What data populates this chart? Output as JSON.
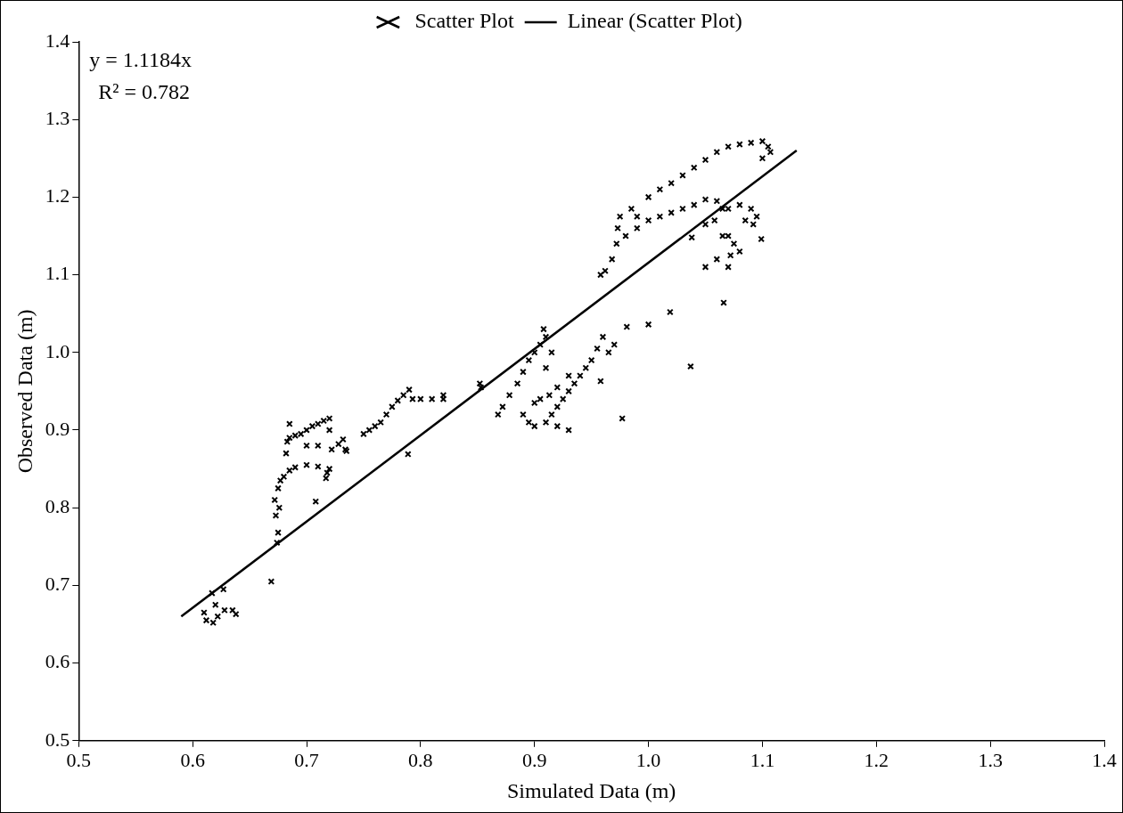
{
  "chart_data": {
    "type": "scatter",
    "xlabel": "Simulated Data (m)",
    "ylabel": "Observed Data (m)",
    "xlim": [
      0.5,
      1.4
    ],
    "ylim": [
      0.5,
      1.4
    ],
    "xticks": [
      0.5,
      0.6,
      0.7,
      0.8,
      0.9,
      {
        "value": 1.0,
        "label": "1.0"
      },
      1.1,
      1.2,
      1.3,
      1.4
    ],
    "yticks": [
      0.5,
      0.6,
      0.7,
      0.8,
      0.9,
      {
        "value": 1.0,
        "label": "1.0"
      },
      1.1,
      1.2,
      1.3,
      1.4
    ],
    "grid": false,
    "legend": "top",
    "annotations": [
      "y = 1.1184x",
      "R² = 0.782"
    ],
    "series": [
      {
        "name": "Scatter Plot",
        "color": "#000000",
        "marker": "cross",
        "x": [
          0.61,
          0.612,
          0.618,
          0.622,
          0.628,
          0.635,
          0.638,
          0.617,
          0.627,
          0.62,
          0.669,
          0.674,
          0.675,
          0.708,
          0.717,
          0.789,
          0.734,
          0.673,
          0.672,
          0.676,
          0.675,
          0.677,
          0.68,
          0.685,
          0.69,
          0.7,
          0.71,
          0.72,
          0.718,
          0.682,
          0.683,
          0.685,
          0.69,
          0.695,
          0.7,
          0.705,
          0.71,
          0.715,
          0.72,
          0.685,
          0.72,
          0.7,
          0.71,
          0.722,
          0.728,
          0.732,
          0.735,
          0.75,
          0.755,
          0.76,
          0.765,
          0.77,
          0.775,
          0.78,
          0.785,
          0.79,
          0.793,
          0.8,
          0.81,
          0.82,
          0.82,
          0.852,
          0.853,
          0.868,
          0.872,
          0.878,
          0.885,
          0.89,
          0.895,
          0.9,
          0.905,
          0.908,
          0.91,
          0.915,
          0.91,
          0.89,
          0.895,
          0.9,
          0.91,
          0.915,
          0.92,
          0.925,
          0.93,
          0.935,
          0.94,
          0.945,
          0.95,
          0.955,
          0.96,
          0.92,
          0.93,
          0.9,
          0.905,
          0.913,
          0.92,
          0.93,
          0.958,
          0.97,
          0.965,
          0.977,
          0.981,
          1.0,
          1.019,
          1.037,
          1.066,
          1.099,
          1.038,
          0.958,
          0.962,
          0.968,
          0.972,
          0.973,
          0.975,
          0.985,
          1.0,
          1.01,
          1.02,
          1.03,
          1.04,
          1.05,
          1.06,
          1.07,
          1.08,
          1.09,
          1.1,
          1.105,
          1.107,
          1.1,
          0.98,
          0.99,
          1.0,
          1.01,
          1.02,
          1.03,
          1.04,
          1.05,
          1.06,
          1.065,
          1.058,
          1.05,
          0.99,
          1.07,
          1.08,
          1.09,
          1.095,
          1.092,
          1.085,
          1.05,
          1.06,
          1.065,
          1.07,
          1.075,
          1.072,
          1.08,
          1.07
        ],
        "values": [
          0.665,
          0.655,
          0.652,
          0.66,
          0.668,
          0.668,
          0.663,
          0.69,
          0.695,
          0.675,
          0.705,
          0.755,
          0.768,
          0.808,
          0.838,
          0.869,
          0.875,
          0.79,
          0.81,
          0.8,
          0.825,
          0.835,
          0.84,
          0.848,
          0.852,
          0.855,
          0.853,
          0.85,
          0.845,
          0.87,
          0.885,
          0.89,
          0.893,
          0.895,
          0.9,
          0.905,
          0.908,
          0.912,
          0.915,
          0.908,
          0.9,
          0.88,
          0.88,
          0.875,
          0.882,
          0.888,
          0.873,
          0.895,
          0.9,
          0.905,
          0.91,
          0.92,
          0.93,
          0.938,
          0.945,
          0.952,
          0.94,
          0.94,
          0.94,
          0.945,
          0.94,
          0.96,
          0.955,
          0.92,
          0.93,
          0.945,
          0.96,
          0.975,
          0.99,
          1.0,
          1.01,
          1.03,
          1.02,
          1.0,
          0.98,
          0.92,
          0.91,
          0.905,
          0.91,
          0.92,
          0.93,
          0.94,
          0.95,
          0.96,
          0.97,
          0.98,
          0.99,
          1.005,
          1.02,
          0.905,
          0.9,
          0.935,
          0.94,
          0.945,
          0.955,
          0.97,
          0.963,
          1.01,
          1.0,
          0.915,
          1.033,
          1.036,
          1.052,
          0.982,
          1.064,
          1.146,
          1.148,
          1.1,
          1.105,
          1.12,
          1.14,
          1.16,
          1.175,
          1.185,
          1.2,
          1.21,
          1.218,
          1.228,
          1.238,
          1.248,
          1.258,
          1.265,
          1.268,
          1.27,
          1.272,
          1.265,
          1.258,
          1.25,
          1.15,
          1.16,
          1.17,
          1.175,
          1.18,
          1.185,
          1.19,
          1.197,
          1.195,
          1.185,
          1.17,
          1.165,
          1.175,
          1.185,
          1.19,
          1.185,
          1.175,
          1.165,
          1.17,
          1.11,
          1.12,
          1.15,
          1.15,
          1.14,
          1.125,
          1.13,
          1.11
        ]
      },
      {
        "name": "Linear (Scatter Plot)",
        "type": "line",
        "color": "#000000",
        "x": [
          0.59,
          1.13
        ],
        "values": [
          0.66,
          1.26
        ]
      }
    ]
  }
}
